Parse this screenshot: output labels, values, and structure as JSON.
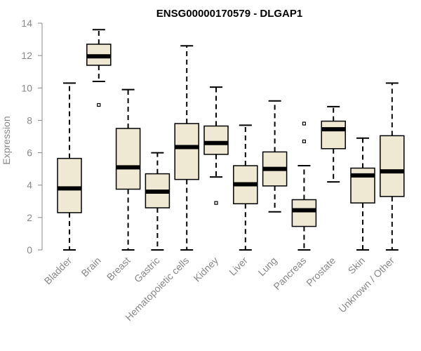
{
  "chart_data": {
    "type": "boxplot",
    "title": "ENSG00000170579 - DLGAP1",
    "xlabel": "",
    "ylabel": "Expression",
    "ylim": [
      0,
      14
    ],
    "yticks": [
      0,
      2,
      4,
      6,
      8,
      10,
      12,
      14
    ],
    "box_fill": "#efe8d2",
    "categories": [
      "Bladder",
      "Brain",
      "Breast",
      "Gastric",
      "Hematopoietic cells",
      "Kidney",
      "Liver",
      "Lung",
      "Pancreas",
      "Prostate",
      "Skin",
      "Unknown / Other"
    ],
    "boxes": [
      {
        "name": "Bladder",
        "min": 0,
        "q1": 2.3,
        "median": 3.8,
        "q3": 5.65,
        "max": 10.3,
        "outliers": []
      },
      {
        "name": "Brain",
        "min": 10.4,
        "q1": 11.4,
        "median": 11.95,
        "q3": 12.7,
        "max": 13.6,
        "outliers": [
          8.95
        ]
      },
      {
        "name": "Breast",
        "min": 0,
        "q1": 3.75,
        "median": 5.1,
        "q3": 7.5,
        "max": 9.9,
        "outliers": []
      },
      {
        "name": "Gastric",
        "min": 0,
        "q1": 2.6,
        "median": 3.6,
        "q3": 4.7,
        "max": 6.0,
        "outliers": []
      },
      {
        "name": "Hematopoietic cells",
        "min": 0,
        "q1": 4.35,
        "median": 6.35,
        "q3": 7.8,
        "max": 12.6,
        "outliers": []
      },
      {
        "name": "Kidney",
        "min": 4.5,
        "q1": 5.9,
        "median": 6.6,
        "q3": 7.65,
        "max": 10.05,
        "outliers": [
          2.9
        ]
      },
      {
        "name": "Liver",
        "min": 0,
        "q1": 2.85,
        "median": 4.05,
        "q3": 5.2,
        "max": 7.7,
        "outliers": []
      },
      {
        "name": "Lung",
        "min": 2.35,
        "q1": 3.95,
        "median": 5.0,
        "q3": 6.05,
        "max": 9.2,
        "outliers": []
      },
      {
        "name": "Pancreas",
        "min": 0,
        "q1": 1.45,
        "median": 2.45,
        "q3": 3.1,
        "max": 5.2,
        "outliers": [
          6.7,
          7.8
        ]
      },
      {
        "name": "Prostate",
        "min": 4.2,
        "q1": 6.25,
        "median": 7.45,
        "q3": 7.95,
        "max": 8.85,
        "outliers": []
      },
      {
        "name": "Skin",
        "min": 0,
        "q1": 2.9,
        "median": 4.6,
        "q3": 5.05,
        "max": 6.9,
        "outliers": []
      },
      {
        "name": "Unknown / Other",
        "min": 0,
        "q1": 3.3,
        "median": 4.85,
        "q3": 7.05,
        "max": 10.3,
        "outliers": []
      }
    ]
  }
}
